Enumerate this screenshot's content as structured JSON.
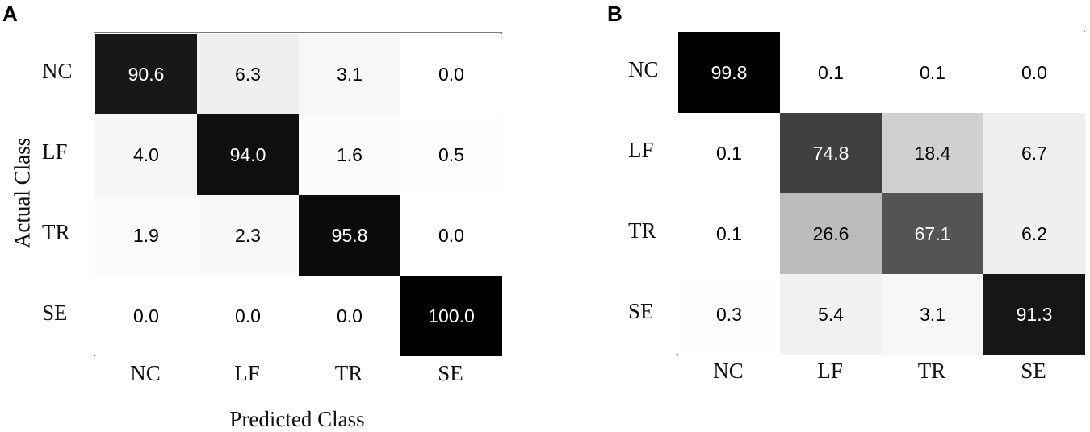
{
  "panels": [
    {
      "letter": "A",
      "chart_data": {
        "type": "heatmap",
        "title": "",
        "xlabel": "Predicted Class",
        "ylabel": "Actual Class",
        "x_categories": [
          "NC",
          "LF",
          "TR",
          "SE"
        ],
        "y_categories": [
          "NC",
          "LF",
          "TR",
          "SE"
        ],
        "values": [
          [
            90.6,
            6.3,
            3.1,
            0.0
          ],
          [
            4.0,
            94.0,
            1.6,
            0.5
          ],
          [
            1.9,
            2.3,
            95.8,
            0.0
          ],
          [
            0.0,
            0.0,
            0.0,
            100.0
          ]
        ],
        "value_labels": [
          [
            "90.6",
            "6.3",
            "3.1",
            "0.0"
          ],
          [
            "4.0",
            "94.0",
            "1.6",
            "0.5"
          ],
          [
            "1.9",
            "2.3",
            "95.8",
            "0.0"
          ],
          [
            "0.0",
            "0.0",
            "0.0",
            "100.0"
          ]
        ],
        "color_scale": {
          "min": 0,
          "max": 100,
          "low_color": "#ffffff",
          "high_color": "#000000"
        }
      }
    },
    {
      "letter": "B",
      "chart_data": {
        "type": "heatmap",
        "title": "",
        "xlabel": "",
        "ylabel": "",
        "x_categories": [
          "NC",
          "LF",
          "TR",
          "SE"
        ],
        "y_categories": [
          "NC",
          "LF",
          "TR",
          "SE"
        ],
        "values": [
          [
            99.8,
            0.1,
            0.1,
            0.0
          ],
          [
            0.1,
            74.8,
            18.4,
            6.7
          ],
          [
            0.1,
            26.6,
            67.1,
            6.2
          ],
          [
            0.3,
            5.4,
            3.1,
            91.3
          ]
        ],
        "value_labels": [
          [
            "99.8",
            "0.1",
            "0.1",
            "0.0"
          ],
          [
            "0.1",
            "74.8",
            "18.4",
            "6.7"
          ],
          [
            "0.1",
            "26.6",
            "67.1",
            "6.2"
          ],
          [
            "0.3",
            "5.4",
            "3.1",
            "91.3"
          ]
        ],
        "color_scale": {
          "min": 0,
          "max": 100,
          "low_color": "#ffffff",
          "high_color": "#000000"
        }
      }
    }
  ]
}
